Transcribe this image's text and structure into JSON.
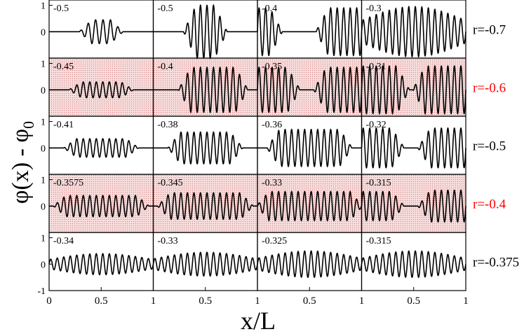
{
  "figure": {
    "ylabel": "φ(x) - φ",
    "ylabel_subscript": "0",
    "xlabel": "x/L",
    "y_ticks": [
      "1",
      "0",
      "1",
      "0",
      "1",
      "0",
      "1",
      "0",
      "1",
      "0",
      "-1"
    ],
    "x_ticks": [
      [
        "0",
        "0.5",
        "1"
      ],
      [
        "0.5",
        "1"
      ],
      [
        "0.5",
        "1"
      ],
      [
        "0.5",
        "1"
      ]
    ]
  },
  "colors": {
    "shaded_background": "#f7dcdc",
    "highlight_label": "#ff0000",
    "normal_label": "#000000",
    "curve": "#000000"
  },
  "chart_data": {
    "type": "line",
    "grid_columns": 4,
    "grid_rows": 5,
    "xlim": [
      0,
      1
    ],
    "ylim": [
      -1,
      1.2
    ],
    "rows": [
      {
        "row_label": "r=-0.7",
        "highlight": false,
        "panels": [
          {
            "label": "-0.5",
            "pattern": [
              [
                0.35,
                0.65,
                0.45
              ]
            ],
            "cycles": 14
          },
          {
            "label": "-0.5",
            "pattern": [
              [
                0.35,
                0.65,
                1.0
              ]
            ],
            "cycles": 16
          },
          {
            "label": "-0.4",
            "pattern": [
              [
                0.0,
                0.18,
                0.9
              ],
              [
                0.62,
                1.0,
                0.9
              ]
            ],
            "cycles": 16
          },
          {
            "label": "-0.3",
            "pattern": [
              [
                0.0,
                1.0,
                0.95
              ]
            ],
            "cycles": 16
          }
        ]
      },
      {
        "row_label": "r=-0.6",
        "highlight": true,
        "panels": [
          {
            "label": "-0.45",
            "pattern": [
              [
                0.25,
                0.75,
                0.3
              ]
            ],
            "cycles": 16
          },
          {
            "label": "-0.4",
            "pattern": [
              [
                0.3,
                0.85,
                0.85
              ]
            ],
            "cycles": 16
          },
          {
            "label": "-0.35",
            "pattern": [
              [
                0.0,
                0.35,
                0.85
              ],
              [
                0.6,
                1.0,
                0.85
              ]
            ],
            "cycles": 16
          },
          {
            "label": "-0.31",
            "pattern": [
              [
                0.0,
                0.4,
                0.9
              ],
              [
                0.55,
                1.0,
                0.9
              ]
            ],
            "cycles": 16
          }
        ]
      },
      {
        "row_label": "r=-0.5",
        "highlight": false,
        "panels": [
          {
            "label": "-0.41",
            "pattern": [
              [
                0.2,
                0.8,
                0.35
              ]
            ],
            "cycles": 16
          },
          {
            "label": "-0.38",
            "pattern": [
              [
                0.2,
                0.8,
                0.6
              ]
            ],
            "cycles": 16
          },
          {
            "label": "-0.36",
            "pattern": [
              [
                0.15,
                0.85,
                0.7
              ]
            ],
            "cycles": 16
          },
          {
            "label": "-0.32",
            "pattern": [
              [
                0.0,
                0.35,
                0.75
              ],
              [
                0.6,
                1.0,
                0.75
              ]
            ],
            "cycles": 16
          }
        ]
      },
      {
        "row_label": "r=-0.4",
        "highlight": true,
        "panels": [
          {
            "label": "-0.3575",
            "pattern": [
              [
                0.1,
                0.9,
                0.4
              ]
            ],
            "cycles": 16
          },
          {
            "label": "-0.345",
            "pattern": [
              [
                0.1,
                0.9,
                0.5
              ]
            ],
            "cycles": 16
          },
          {
            "label": "-0.33",
            "pattern": [
              [
                0.05,
                0.95,
                0.55
              ]
            ],
            "cycles": 16
          },
          {
            "label": "-0.315",
            "pattern": [
              [
                0.0,
                0.35,
                0.55
              ],
              [
                0.6,
                1.0,
                0.6
              ]
            ],
            "cycles": 16
          }
        ]
      },
      {
        "row_label": "r=-0.375",
        "highlight": false,
        "panels": [
          {
            "label": "-0.34",
            "pattern": [
              [
                0.0,
                1.0,
                0.4
              ]
            ],
            "cycles": 16
          },
          {
            "label": "-0.33",
            "pattern": [
              [
                0.0,
                1.0,
                0.45
              ]
            ],
            "cycles": 16
          },
          {
            "label": "-0.325",
            "pattern": [
              [
                0.0,
                1.0,
                0.5
              ]
            ],
            "cycles": 16
          },
          {
            "label": "-0.315",
            "pattern": [
              [
                0.0,
                1.0,
                0.5
              ]
            ],
            "cycles": 16
          }
        ]
      }
    ]
  }
}
